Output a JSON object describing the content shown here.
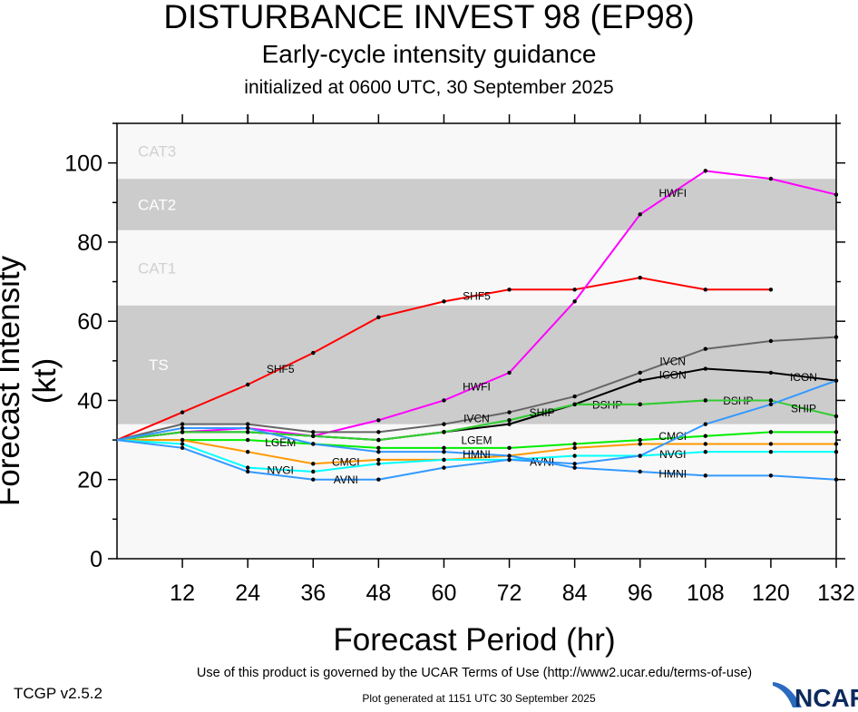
{
  "chart_data": {
    "type": "line",
    "title": "DISTURBANCE INVEST 98 (EP98)",
    "subtitle": "Early-cycle intensity guidance",
    "init_text": "initialized at 0600 UTC, 30 September 2025",
    "xlabel": "Forecast Period (hr)",
    "ylabel": "Forecast Intensity (kt)",
    "xlim": [
      0,
      132
    ],
    "ylim": [
      0,
      110
    ],
    "x_ticks": [
      12,
      24,
      36,
      48,
      60,
      72,
      84,
      96,
      108,
      120,
      132
    ],
    "y_ticks": [
      0,
      20,
      40,
      60,
      80,
      100
    ],
    "x": [
      0,
      12,
      24,
      36,
      48,
      60,
      72,
      84,
      96,
      108,
      120,
      132
    ],
    "bands": [
      {
        "label": "TS",
        "from": 34,
        "to": 64,
        "color": "#cccccc"
      },
      {
        "label": "CAT1",
        "from": 64,
        "to": 83,
        "color": "#f8f8f8"
      },
      {
        "label": "CAT2",
        "from": 83,
        "to": 96,
        "color": "#cccccc"
      },
      {
        "label": "CAT3",
        "from": 96,
        "to": 110,
        "color": "#f8f8f8"
      }
    ],
    "series": [
      {
        "name": "SHF5",
        "color": "#ff0000",
        "values": [
          30,
          37,
          44,
          52,
          61,
          65,
          68,
          68,
          71,
          68,
          68,
          null
        ]
      },
      {
        "name": "HWFI",
        "color": "#ff00ff",
        "values": [
          30,
          32,
          33,
          31,
          35,
          40,
          47,
          65,
          87,
          98,
          96,
          92
        ]
      },
      {
        "name": "IVCN",
        "color": "#666666",
        "values": [
          30,
          34,
          34,
          32,
          32,
          34,
          37,
          41,
          47,
          53,
          55,
          56
        ]
      },
      {
        "name": "ICON",
        "color": "#000000",
        "values": [
          30,
          32,
          32,
          31,
          30,
          32,
          34,
          39,
          45,
          48,
          47,
          45
        ]
      },
      {
        "name": "DSHP",
        "color": "#33cc33",
        "values": [
          30,
          32,
          32,
          31,
          30,
          32,
          35,
          39,
          39,
          40,
          40,
          null
        ]
      },
      {
        "name": "SHIP",
        "color": "#33cc33",
        "values": [
          30,
          32,
          32,
          31,
          30,
          32,
          35,
          39,
          39,
          40,
          40,
          36
        ]
      },
      {
        "name": "LGEM",
        "color": "#00ee00",
        "values": [
          30,
          30,
          30,
          29,
          28,
          28,
          28,
          29,
          30,
          31,
          32,
          32
        ]
      },
      {
        "name": "CMCI",
        "color": "#ff9900",
        "values": [
          30,
          30,
          27,
          24,
          25,
          25,
          26,
          28,
          29,
          29,
          29,
          29
        ]
      },
      {
        "name": "NVGI",
        "color": "#00ffff",
        "values": [
          30,
          29,
          23,
          22,
          24,
          25,
          25,
          26,
          26,
          27,
          27,
          27
        ]
      },
      {
        "name": "AVNI",
        "color": "#3399ff",
        "values": [
          30,
          28,
          22,
          20,
          20,
          23,
          25,
          24,
          26,
          34,
          39,
          45
        ]
      },
      {
        "name": "HMNI",
        "color": "#3399ff",
        "values": [
          30,
          33,
          33,
          29,
          27,
          27,
          26,
          23,
          22,
          21,
          21,
          20
        ]
      }
    ]
  },
  "footer": {
    "terms": "Use of this product is governed by the UCAR Terms of Use (http://www2.ucar.edu/terms-of-use)",
    "version": "TCGP v2.5.2",
    "generated": "Plot generated at 1151 UTC   30 September 2025",
    "logo_text": "NCAR"
  }
}
